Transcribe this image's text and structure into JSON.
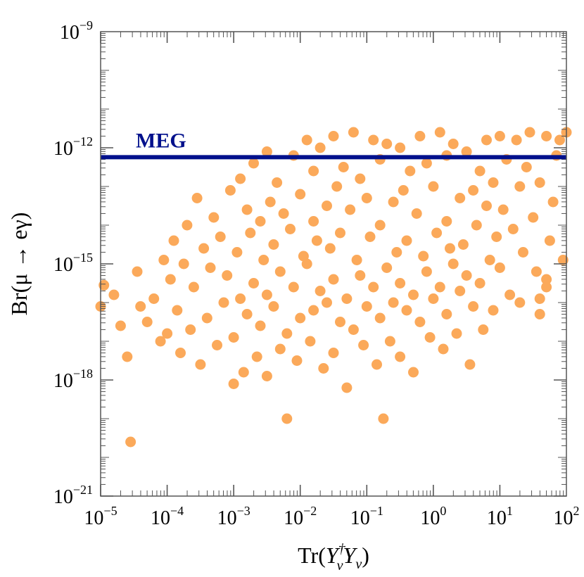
{
  "chart_data": {
    "type": "scatter",
    "title": "",
    "xlabel_parts": {
      "tr": "Tr(",
      "y1": "Y",
      "sup": "†",
      "sub1": "ν",
      "y2": "Y",
      "sub2": "ν",
      "close": ")"
    },
    "ylabel": "Br(μ → eγ)",
    "x_scale": "log",
    "y_scale": "log",
    "xlim": [
      1e-05,
      100
    ],
    "ylim": [
      1e-21,
      1e-09
    ],
    "x_ticks": [
      {
        "base": "10",
        "exp": "−5",
        "value": 1e-05
      },
      {
        "base": "10",
        "exp": "−4",
        "value": 0.0001
      },
      {
        "base": "10",
        "exp": "−3",
        "value": 0.001
      },
      {
        "base": "10",
        "exp": "−2",
        "value": 0.01
      },
      {
        "base": "10",
        "exp": "−1",
        "value": 0.1
      },
      {
        "base": "10",
        "exp": "0",
        "value": 1
      },
      {
        "base": "10",
        "exp": "1",
        "value": 10
      },
      {
        "base": "10",
        "exp": "2",
        "value": 100
      }
    ],
    "y_ticks": [
      {
        "base": "10",
        "exp": "−9",
        "value": 1e-09
      },
      {
        "base": "10",
        "exp": "−12",
        "value": 1e-12
      },
      {
        "base": "10",
        "exp": "−15",
        "value": 1e-15
      },
      {
        "base": "10",
        "exp": "−18",
        "value": 1e-18
      },
      {
        "base": "10",
        "exp": "−21",
        "value": 1e-21
      }
    ],
    "grid": false,
    "point_color": "#FBA95A",
    "limit_line": {
      "label": "MEG",
      "y": 5.7e-13,
      "color": "#00108C"
    },
    "series": [
      {
        "points": [
          [
            -5.0,
            -16.1
          ],
          [
            -4.95,
            -15.55
          ],
          [
            -4.8,
            -15.8
          ],
          [
            -4.7,
            -16.6
          ],
          [
            -4.6,
            -17.4
          ],
          [
            -4.55,
            -19.6
          ],
          [
            -4.45,
            -15.2
          ],
          [
            -4.4,
            -16.1
          ],
          [
            -4.3,
            -16.5
          ],
          [
            -4.2,
            -15.9
          ],
          [
            -4.1,
            -17.0
          ],
          [
            -4.05,
            -14.9
          ],
          [
            -4.0,
            -16.8
          ],
          [
            -3.95,
            -15.4
          ],
          [
            -3.9,
            -14.4
          ],
          [
            -3.85,
            -16.2
          ],
          [
            -3.8,
            -17.3
          ],
          [
            -3.75,
            -15.0
          ],
          [
            -3.7,
            -14.0
          ],
          [
            -3.65,
            -16.7
          ],
          [
            -3.6,
            -15.6
          ],
          [
            -3.55,
            -13.3
          ],
          [
            -3.5,
            -17.6
          ],
          [
            -3.45,
            -14.6
          ],
          [
            -3.4,
            -16.4
          ],
          [
            -3.35,
            -15.1
          ],
          [
            -3.3,
            -13.8
          ],
          [
            -3.25,
            -17.1
          ],
          [
            -3.2,
            -14.3
          ],
          [
            -3.15,
            -16.0
          ],
          [
            -3.1,
            -15.3
          ],
          [
            -3.05,
            -13.1
          ],
          [
            -3.0,
            -16.9
          ],
          [
            -3.0,
            -18.1
          ],
          [
            -2.95,
            -14.7
          ],
          [
            -2.9,
            -12.8
          ],
          [
            -2.9,
            -15.9
          ],
          [
            -2.85,
            -17.8
          ],
          [
            -2.8,
            -13.6
          ],
          [
            -2.8,
            -16.3
          ],
          [
            -2.75,
            -14.2
          ],
          [
            -2.7,
            -12.4
          ],
          [
            -2.7,
            -15.5
          ],
          [
            -2.65,
            -17.4
          ],
          [
            -2.6,
            -13.9
          ],
          [
            -2.6,
            -16.6
          ],
          [
            -2.55,
            -14.9
          ],
          [
            -2.5,
            -12.1
          ],
          [
            -2.5,
            -15.8
          ],
          [
            -2.5,
            -17.9
          ],
          [
            -2.45,
            -13.4
          ],
          [
            -2.4,
            -16.1
          ],
          [
            -2.4,
            -14.5
          ],
          [
            -2.35,
            -12.9
          ],
          [
            -2.3,
            -17.2
          ],
          [
            -2.3,
            -15.2
          ],
          [
            -2.25,
            -13.7
          ],
          [
            -2.2,
            -16.8
          ],
          [
            -2.2,
            -19.0
          ],
          [
            -2.15,
            -14.1
          ],
          [
            -2.1,
            -12.2
          ],
          [
            -2.1,
            -15.6
          ],
          [
            -2.05,
            -17.5
          ],
          [
            -2.0,
            -13.2
          ],
          [
            -2.0,
            -16.4
          ],
          [
            -1.95,
            -14.8
          ],
          [
            -1.9,
            -11.8
          ],
          [
            -1.9,
            -15.0
          ],
          [
            -1.85,
            -17.0
          ],
          [
            -1.8,
            -12.6
          ],
          [
            -1.8,
            -13.9
          ],
          [
            -1.8,
            -16.2
          ],
          [
            -1.75,
            -14.4
          ],
          [
            -1.7,
            -12.0
          ],
          [
            -1.7,
            -15.7
          ],
          [
            -1.65,
            -17.7
          ],
          [
            -1.6,
            -13.5
          ],
          [
            -1.6,
            -16.0
          ],
          [
            -1.55,
            -14.6
          ],
          [
            -1.5,
            -11.7
          ],
          [
            -1.5,
            -15.4
          ],
          [
            -1.5,
            -17.3
          ],
          [
            -1.45,
            -13.0
          ],
          [
            -1.4,
            -16.5
          ],
          [
            -1.4,
            -14.2
          ],
          [
            -1.35,
            -12.5
          ],
          [
            -1.3,
            -15.9
          ],
          [
            -1.3,
            -18.2
          ],
          [
            -1.25,
            -13.6
          ],
          [
            -1.2,
            -11.6
          ],
          [
            -1.2,
            -16.7
          ],
          [
            -1.15,
            -14.9
          ],
          [
            -1.1,
            -12.8
          ],
          [
            -1.1,
            -15.3
          ],
          [
            -1.05,
            -17.1
          ],
          [
            -1.0,
            -13.3
          ],
          [
            -1.0,
            -16.1
          ],
          [
            -0.95,
            -14.3
          ],
          [
            -0.9,
            -11.8
          ],
          [
            -0.9,
            -15.6
          ],
          [
            -0.85,
            -17.6
          ],
          [
            -0.8,
            -12.3
          ],
          [
            -0.8,
            -14.0
          ],
          [
            -0.8,
            -16.4
          ],
          [
            -0.75,
            -19.0
          ],
          [
            -0.7,
            -11.9
          ],
          [
            -0.7,
            -15.1
          ],
          [
            -0.65,
            -17.0
          ],
          [
            -0.6,
            -13.4
          ],
          [
            -0.6,
            -16.0
          ],
          [
            -0.55,
            -14.7
          ],
          [
            -0.5,
            -12.0
          ],
          [
            -0.5,
            -15.5
          ],
          [
            -0.5,
            -17.4
          ],
          [
            -0.45,
            -13.1
          ],
          [
            -0.4,
            -16.2
          ],
          [
            -0.4,
            -14.4
          ],
          [
            -0.35,
            -12.6
          ],
          [
            -0.3,
            -15.8
          ],
          [
            -0.3,
            -17.8
          ],
          [
            -0.25,
            -13.7
          ],
          [
            -0.2,
            -11.7
          ],
          [
            -0.2,
            -16.5
          ],
          [
            -0.15,
            -14.8
          ],
          [
            -0.1,
            -12.4
          ],
          [
            -0.1,
            -15.2
          ],
          [
            -0.05,
            -16.9
          ],
          [
            0.0,
            -13.0
          ],
          [
            0.0,
            -15.9
          ],
          [
            0.05,
            -14.2
          ],
          [
            0.1,
            -11.6
          ],
          [
            0.1,
            -15.6
          ],
          [
            0.15,
            -17.2
          ],
          [
            0.2,
            -12.2
          ],
          [
            0.2,
            -13.9
          ],
          [
            0.2,
            -16.3
          ],
          [
            0.25,
            -14.6
          ],
          [
            0.3,
            -11.9
          ],
          [
            0.3,
            -15.0
          ],
          [
            0.35,
            -16.8
          ],
          [
            0.4,
            -13.3
          ],
          [
            0.4,
            -15.7
          ],
          [
            0.45,
            -14.5
          ],
          [
            0.5,
            -12.1
          ],
          [
            0.5,
            -15.3
          ],
          [
            0.55,
            -17.6
          ],
          [
            0.6,
            -13.1
          ],
          [
            0.6,
            -16.1
          ],
          [
            0.65,
            -14.0
          ],
          [
            0.7,
            -12.6
          ],
          [
            0.7,
            -15.5
          ],
          [
            0.75,
            -16.7
          ],
          [
            0.8,
            -13.5
          ],
          [
            0.8,
            -11.8
          ],
          [
            0.85,
            -14.9
          ],
          [
            0.9,
            -12.9
          ],
          [
            0.9,
            -16.2
          ],
          [
            0.95,
            -14.3
          ],
          [
            1.0,
            -11.7
          ],
          [
            1.0,
            -15.1
          ],
          [
            1.05,
            -13.6
          ],
          [
            1.1,
            -12.3
          ],
          [
            1.15,
            -15.8
          ],
          [
            1.2,
            -14.1
          ],
          [
            1.25,
            -11.8
          ],
          [
            1.3,
            -13.0
          ],
          [
            1.3,
            -16.0
          ],
          [
            1.35,
            -14.7
          ],
          [
            1.4,
            -12.5
          ],
          [
            1.45,
            -11.6
          ],
          [
            1.5,
            -13.8
          ],
          [
            1.55,
            -15.2
          ],
          [
            1.6,
            -12.9
          ],
          [
            1.7,
            -11.7
          ],
          [
            1.75,
            -14.4
          ],
          [
            1.8,
            -13.4
          ],
          [
            1.85,
            -12.2
          ],
          [
            1.9,
            -11.8
          ],
          [
            1.95,
            -14.9
          ],
          [
            2.0,
            -11.6
          ],
          [
            1.6,
            -16.3
          ],
          [
            1.7,
            -15.6
          ],
          [
            1.6,
            -15.9
          ],
          [
            1.7,
            -15.4
          ]
        ]
      }
    ]
  }
}
